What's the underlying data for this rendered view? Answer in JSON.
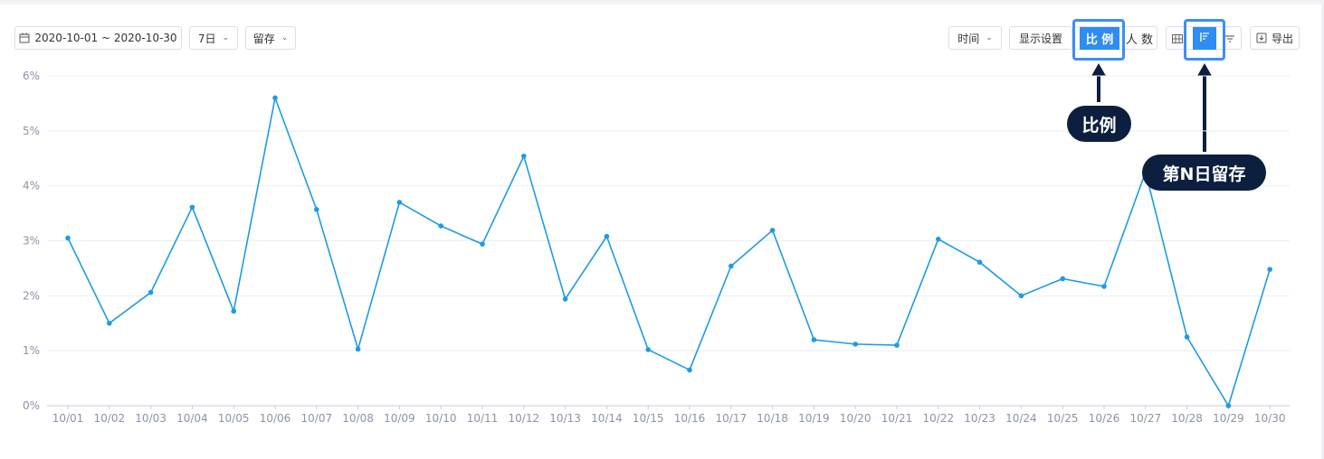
{
  "toolbar": {
    "date_range": "2020-10-01 ~ 2020-10-30",
    "period": "7日",
    "metric": "留存",
    "time_label": "时间",
    "display_settings": "显示设置",
    "ratio_label": "比 例",
    "count_label": "人 数",
    "export_label": "导出"
  },
  "callouts": {
    "ratio": "比例",
    "nth_day": "第N日留存"
  },
  "colors": {
    "line": "#1c9be6",
    "accent": "#2f8cf0",
    "callout_bg": "#0c1f3f"
  },
  "chart_data": {
    "type": "line",
    "categories": [
      "10/01",
      "10/02",
      "10/03",
      "10/04",
      "10/05",
      "10/06",
      "10/07",
      "10/08",
      "10/09",
      "10/10",
      "10/11",
      "10/12",
      "10/13",
      "10/14",
      "10/15",
      "10/16",
      "10/17",
      "10/18",
      "10/19",
      "10/20",
      "10/21",
      "10/22",
      "10/23",
      "10/24",
      "10/25",
      "10/26",
      "10/27",
      "10/28",
      "10/29",
      "10/30"
    ],
    "series": [
      {
        "values": [
          3.05,
          1.5,
          2.06,
          3.61,
          1.72,
          5.6,
          3.57,
          1.03,
          3.7,
          3.27,
          2.94,
          4.54,
          1.94,
          3.08,
          1.02,
          0.65,
          2.54,
          3.19,
          1.2,
          1.12,
          1.1,
          3.03,
          2.61,
          2.0,
          2.31,
          2.17,
          4.25,
          1.25,
          0.0,
          2.48
        ]
      }
    ],
    "yticks": [
      "0%",
      "1%",
      "2%",
      "3%",
      "4%",
      "5%",
      "6%"
    ],
    "ylim": [
      0,
      6
    ],
    "grid": true,
    "title": "",
    "xlabel": "",
    "ylabel": ""
  }
}
